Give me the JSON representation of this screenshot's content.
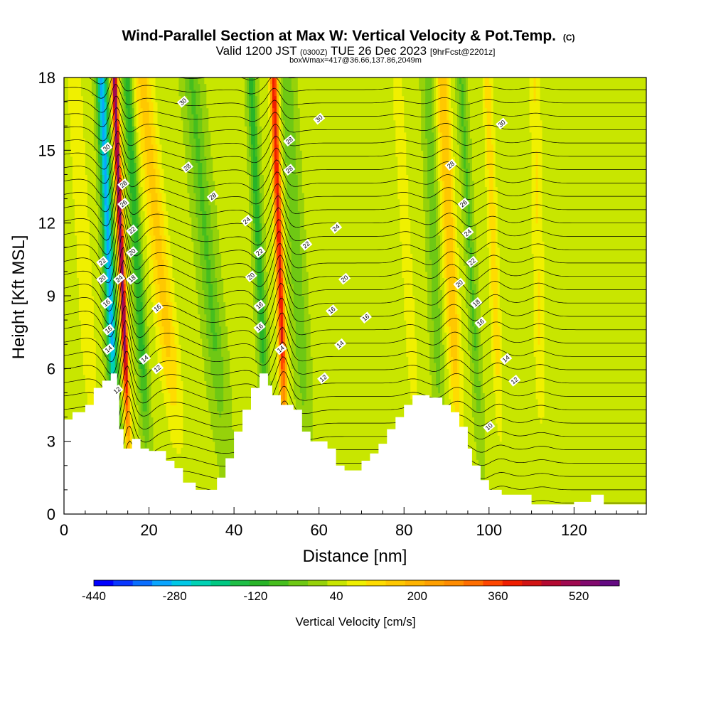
{
  "chart_data": {
    "type": "heatmap",
    "title": "Wind-Parallel Section at Max W: Vertical Velocity & Pot.Temp.",
    "title_mark": "(C)",
    "subtitle_main": "Valid 1200 JST",
    "subtitle_utc": "(0300Z)",
    "subtitle_date": "TUE 26 Dec 2023",
    "subtitle_fcst": "[9hrFcst@2201z]",
    "subtitle2": "boxWmax=417@36.66,137.86,2049m",
    "xlabel": "Distance [nm]",
    "ylabel": "Height [Kft MSL]",
    "xlim": [
      0,
      137
    ],
    "ylim": [
      0,
      18
    ],
    "x_ticks": [
      0,
      20,
      40,
      60,
      80,
      100,
      120
    ],
    "y_ticks": [
      0,
      3,
      6,
      9,
      12,
      15,
      18
    ],
    "colorbar": {
      "label": "Vertical Velocity [cm/s]",
      "min": -440,
      "max": 600,
      "ticks": [
        -440,
        -280,
        -120,
        40,
        200,
        360,
        520
      ],
      "colors": [
        "#0000ff",
        "#0a37ff",
        "#0a6eff",
        "#0aa5ff",
        "#00c8e6",
        "#00d2b4",
        "#00c882",
        "#1ebe46",
        "#28b428",
        "#46be1e",
        "#6ec814",
        "#96d20a",
        "#c8e600",
        "#f0f000",
        "#ffdc00",
        "#ffc800",
        "#ffb400",
        "#ffa000",
        "#ff8c00",
        "#ff6e00",
        "#ff4600",
        "#f01e00",
        "#d21414",
        "#b40a32",
        "#a00a50",
        "#820a6e",
        "#640a82"
      ]
    },
    "terrain_kft": [
      [
        0,
        3.9
      ],
      [
        2,
        3.9
      ],
      [
        2,
        4.2
      ],
      [
        5,
        4.2
      ],
      [
        5,
        4.5
      ],
      [
        7,
        4.5
      ],
      [
        7,
        5.2
      ],
      [
        9,
        5.2
      ],
      [
        9,
        5.5
      ],
      [
        11,
        5.5
      ],
      [
        11,
        5.8
      ],
      [
        12.5,
        5.8
      ],
      [
        12.5,
        5.2
      ],
      [
        13,
        5.2
      ],
      [
        13,
        3.5
      ],
      [
        14,
        3.5
      ],
      [
        14,
        2.7
      ],
      [
        16,
        2.7
      ],
      [
        16,
        3.1
      ],
      [
        18,
        3.1
      ],
      [
        18,
        2.7
      ],
      [
        20,
        2.7
      ],
      [
        20,
        2.6
      ],
      [
        24,
        2.6
      ],
      [
        24,
        2.2
      ],
      [
        26,
        2.2
      ],
      [
        26,
        1.9
      ],
      [
        28,
        1.9
      ],
      [
        28,
        1.3
      ],
      [
        31,
        1.3
      ],
      [
        31,
        1.0
      ],
      [
        36,
        1.0
      ],
      [
        36,
        1.5
      ],
      [
        38,
        1.5
      ],
      [
        38,
        2.3
      ],
      [
        40,
        2.3
      ],
      [
        40,
        3.4
      ],
      [
        42,
        3.4
      ],
      [
        42,
        4.3
      ],
      [
        44,
        4.3
      ],
      [
        44,
        5.2
      ],
      [
        46,
        5.2
      ],
      [
        46,
        5.8
      ],
      [
        48,
        5.8
      ],
      [
        48,
        5.3
      ],
      [
        49,
        5.3
      ],
      [
        49,
        4.9
      ],
      [
        51,
        4.9
      ],
      [
        51,
        4.5
      ],
      [
        54,
        4.5
      ],
      [
        54,
        4.3
      ],
      [
        56,
        4.3
      ],
      [
        56,
        3.4
      ],
      [
        58,
        3.4
      ],
      [
        58,
        3.0
      ],
      [
        62,
        3.0
      ],
      [
        62,
        2.7
      ],
      [
        64,
        2.7
      ],
      [
        64,
        2.0
      ],
      [
        66,
        2.0
      ],
      [
        66,
        1.8
      ],
      [
        70,
        1.8
      ],
      [
        70,
        2.2
      ],
      [
        72,
        2.2
      ],
      [
        72,
        2.5
      ],
      [
        74,
        2.5
      ],
      [
        74,
        2.9
      ],
      [
        76,
        2.9
      ],
      [
        76,
        3.5
      ],
      [
        78,
        3.5
      ],
      [
        78,
        4.0
      ],
      [
        80,
        4.0
      ],
      [
        80,
        4.5
      ],
      [
        82,
        4.5
      ],
      [
        82,
        4.9
      ],
      [
        86,
        4.9
      ],
      [
        86,
        4.8
      ],
      [
        89,
        4.8
      ],
      [
        89,
        4.5
      ],
      [
        91,
        4.5
      ],
      [
        91,
        4.2
      ],
      [
        93,
        4.2
      ],
      [
        93,
        3.6
      ],
      [
        95,
        3.6
      ],
      [
        95,
        2.7
      ],
      [
        96,
        2.7
      ],
      [
        96,
        2.0
      ],
      [
        98,
        2.0
      ],
      [
        98,
        1.4
      ],
      [
        100,
        1.4
      ],
      [
        100,
        1.0
      ],
      [
        103,
        1.0
      ],
      [
        103,
        0.8
      ],
      [
        110,
        0.8
      ],
      [
        110,
        0.4
      ],
      [
        120,
        0.4
      ],
      [
        120,
        0.5
      ],
      [
        124,
        0.5
      ],
      [
        124,
        0.8
      ],
      [
        127,
        0.8
      ],
      [
        127,
        0.4
      ],
      [
        137,
        0.4
      ]
    ],
    "theta_contour_labels": [
      {
        "x": 10,
        "y": 15.1,
        "text": "30"
      },
      {
        "x": 28,
        "y": 17.0,
        "text": "30"
      },
      {
        "x": 60,
        "y": 16.3,
        "text": "30"
      },
      {
        "x": 103,
        "y": 16.1,
        "text": "30"
      },
      {
        "x": 14,
        "y": 13.6,
        "text": "28"
      },
      {
        "x": 53,
        "y": 15.4,
        "text": "28"
      },
      {
        "x": 29,
        "y": 14.3,
        "text": "28"
      },
      {
        "x": 53,
        "y": 14.2,
        "text": "28"
      },
      {
        "x": 35,
        "y": 13.1,
        "text": "28"
      },
      {
        "x": 91,
        "y": 14.4,
        "text": "28"
      },
      {
        "x": 14,
        "y": 12.8,
        "text": "26"
      },
      {
        "x": 94,
        "y": 12.8,
        "text": "26"
      },
      {
        "x": 43,
        "y": 12.1,
        "text": "24"
      },
      {
        "x": 64,
        "y": 11.8,
        "text": "24"
      },
      {
        "x": 95,
        "y": 11.6,
        "text": "24"
      },
      {
        "x": 16,
        "y": 11.7,
        "text": "22"
      },
      {
        "x": 9,
        "y": 10.4,
        "text": "22"
      },
      {
        "x": 46,
        "y": 10.8,
        "text": "22"
      },
      {
        "x": 57,
        "y": 11.1,
        "text": "22"
      },
      {
        "x": 96,
        "y": 10.4,
        "text": "22"
      },
      {
        "x": 16,
        "y": 10.8,
        "text": "20"
      },
      {
        "x": 9,
        "y": 9.7,
        "text": "20"
      },
      {
        "x": 44,
        "y": 9.8,
        "text": "20"
      },
      {
        "x": 66,
        "y": 9.7,
        "text": "20"
      },
      {
        "x": 93,
        "y": 9.5,
        "text": "20"
      },
      {
        "x": 13,
        "y": 9.7,
        "text": "24"
      },
      {
        "x": 16,
        "y": 9.7,
        "text": "18"
      },
      {
        "x": 97,
        "y": 8.7,
        "text": "18"
      },
      {
        "x": 10,
        "y": 8.7,
        "text": "16"
      },
      {
        "x": 22,
        "y": 8.5,
        "text": "16"
      },
      {
        "x": 46,
        "y": 8.6,
        "text": "16"
      },
      {
        "x": 63,
        "y": 8.4,
        "text": "16"
      },
      {
        "x": 71,
        "y": 8.1,
        "text": "16"
      },
      {
        "x": 98,
        "y": 7.9,
        "text": "16"
      },
      {
        "x": 10.5,
        "y": 7.6,
        "text": "16"
      },
      {
        "x": 46,
        "y": 7.7,
        "text": "16"
      },
      {
        "x": 10.5,
        "y": 6.8,
        "text": "14"
      },
      {
        "x": 19,
        "y": 6.4,
        "text": "14"
      },
      {
        "x": 51,
        "y": 6.8,
        "text": "14"
      },
      {
        "x": 65,
        "y": 7.0,
        "text": "14"
      },
      {
        "x": 104,
        "y": 6.4,
        "text": "14"
      },
      {
        "x": 22,
        "y": 6.0,
        "text": "12"
      },
      {
        "x": 61,
        "y": 5.6,
        "text": "12"
      },
      {
        "x": 106,
        "y": 5.5,
        "text": "12"
      },
      {
        "x": 12.5,
        "y": 5.1,
        "text": "12"
      },
      {
        "x": 100,
        "y": 3.6,
        "text": "10"
      }
    ]
  }
}
